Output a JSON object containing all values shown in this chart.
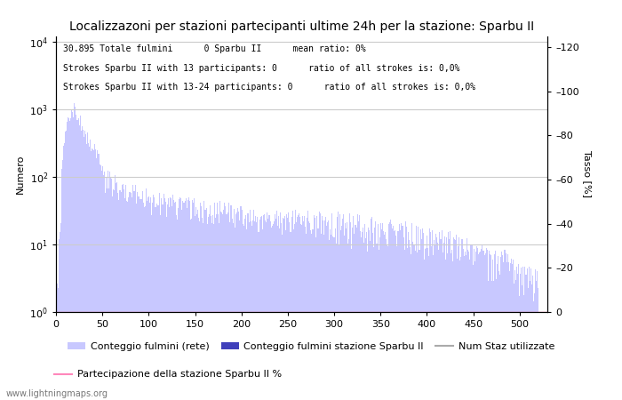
{
  "title": "Localizzazoni per stazioni partecipanti ultime 24h per la stazione: Sparbu II",
  "ylabel_left": "Numero",
  "ylabel_right": "Tasso [%]",
  "annotation_lines": [
    "30.895 Totale fulmini      0 Sparbu II      mean ratio: 0%",
    "Strokes Sparbu II with 13 participants: 0      ratio of all strokes is: 0,0%",
    "Strokes Sparbu II with 13-24 participants: 0      ratio of all strokes is: 0,0%"
  ],
  "bar_color_light": "#c8c8ff",
  "bar_color_dark": "#4040bb",
  "line_color_pink": "#ff88bb",
  "grid_color": "#cccccc",
  "background_color": "#ffffff",
  "xlim": [
    0,
    530
  ],
  "ylim_right": [
    0,
    125
  ],
  "right_yticks": [
    0,
    20,
    40,
    60,
    80,
    100,
    120
  ],
  "watermark": "www.lightningmaps.org",
  "legend_labels": [
    "Conteggio fulmini (rete)",
    "Conteggio fulmini stazione Sparbu II",
    "Num Staz utilizzate",
    "Partecipazione della stazione Sparbu II %"
  ],
  "legend_colors": [
    "#c8c8ff",
    "#4040bb",
    "#aaaaaa",
    "#ff88bb"
  ],
  "n_bins": 530
}
